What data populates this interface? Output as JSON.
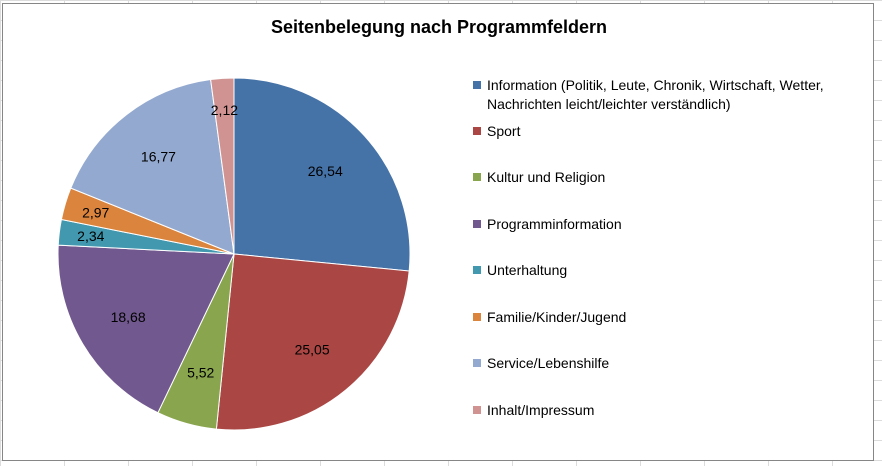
{
  "chart_data": {
    "type": "pie",
    "title": "Seitenbelegung nach Programmfeldern",
    "legend_position": "right",
    "slices": [
      {
        "label": "Information (Politik, Leute, Chronik, Wirtschaft, Wetter, Nachrichten leicht/leichter verständlich)",
        "value": 26.54,
        "value_label": "26,54",
        "color": "#4572A7"
      },
      {
        "label": "Sport",
        "value": 25.05,
        "value_label": "25,05",
        "color": "#AA4643"
      },
      {
        "label": "Kultur und Religion",
        "value": 5.52,
        "value_label": "5,52",
        "color": "#89A54E"
      },
      {
        "label": "Programminformation",
        "value": 18.68,
        "value_label": "18,68",
        "color": "#71588F"
      },
      {
        "label": "Unterhaltung",
        "value": 2.34,
        "value_label": "2,34",
        "color": "#4198AF"
      },
      {
        "label": "Familie/Kinder/Jugend",
        "value": 2.97,
        "value_label": "2,97",
        "color": "#DB843D"
      },
      {
        "label": "Service/Lebenshilfe",
        "value": 16.77,
        "value_label": "16,77",
        "color": "#93A9CF"
      },
      {
        "label": "Inhalt/Impressum",
        "value": 2.12,
        "value_label": "2,12",
        "color": "#D19392"
      }
    ]
  }
}
